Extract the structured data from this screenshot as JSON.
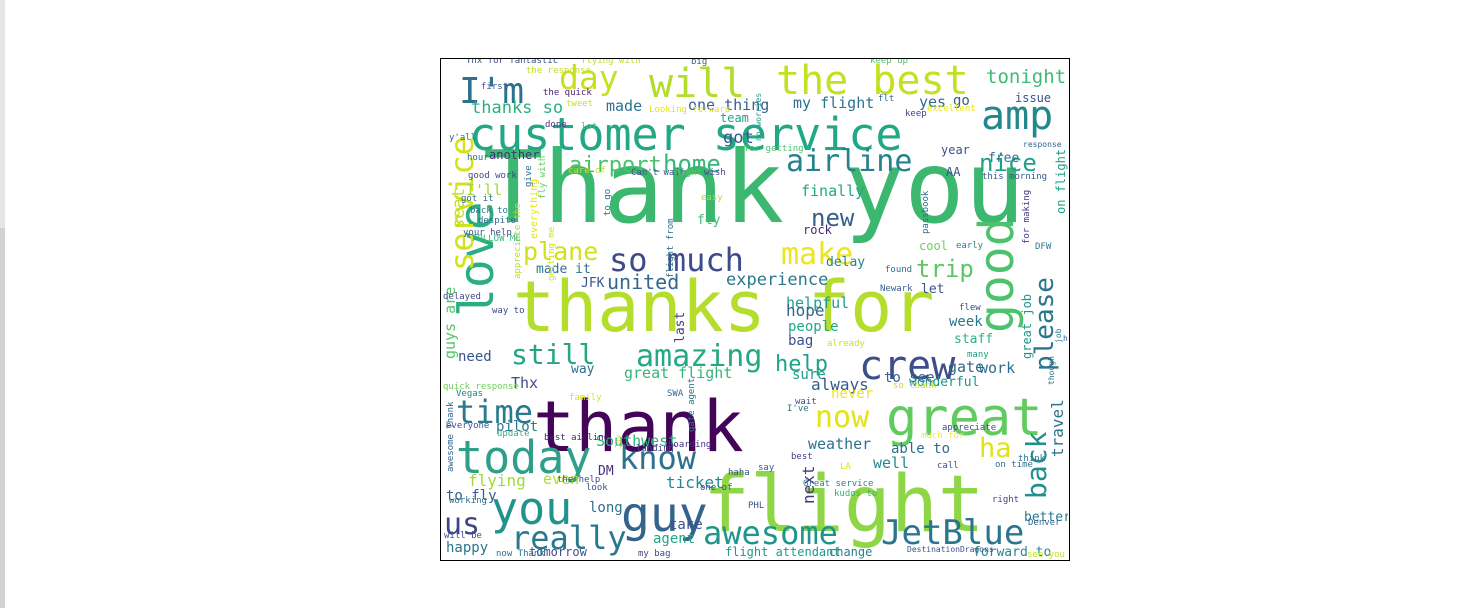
{
  "word_cloud": {
    "words": [
      {
        "text": "Thank you",
        "color": "#3bb76f"
      },
      {
        "text": "thanks for",
        "color": "#b5dd2b"
      },
      {
        "text": "thank",
        "color": "#44045a"
      },
      {
        "text": "flight",
        "color": "#8ed645"
      },
      {
        "text": "customer service",
        "color": "#22a884"
      },
      {
        "text": "the best",
        "color": "#c5e021"
      },
      {
        "text": "great",
        "color": "#62cb5f"
      },
      {
        "text": "love",
        "color": "#28ae80"
      },
      {
        "text": "today",
        "color": "#2f9f8a"
      },
      {
        "text": "good",
        "color": "#4cc26c"
      },
      {
        "text": "guy",
        "color": "#33648d"
      },
      {
        "text": "you",
        "color": "#20938c"
      },
      {
        "text": "awesome",
        "color": "#1f968b"
      },
      {
        "text": "JetBlue",
        "color": "#2b758e"
      },
      {
        "text": "crew",
        "color": "#3d4e8a"
      },
      {
        "text": "amp",
        "color": "#23888e"
      },
      {
        "text": "will",
        "color": "#b2dd2d"
      },
      {
        "text": "day",
        "color": "#c8e020"
      },
      {
        "text": "I'm",
        "color": "#2c728e"
      },
      {
        "text": "so much",
        "color": "#3e4a89"
      },
      {
        "text": "service",
        "color": "#d2e21b"
      },
      {
        "text": "airline",
        "color": "#26818e"
      },
      {
        "text": "time",
        "color": "#297a8e"
      },
      {
        "text": "know",
        "color": "#2d718e"
      },
      {
        "text": "still",
        "color": "#25a584"
      },
      {
        "text": "amazing",
        "color": "#24aa83"
      },
      {
        "text": "really",
        "color": "#29798e"
      },
      {
        "text": "us",
        "color": "#414487"
      },
      {
        "text": "now",
        "color": "#e2e418"
      },
      {
        "text": "back",
        "color": "#218f8d"
      },
      {
        "text": "please",
        "color": "#2a768e"
      },
      {
        "text": "make",
        "color": "#efe51c"
      },
      {
        "text": "plane",
        "color": "#d0e11c"
      },
      {
        "text": "new",
        "color": "#355f8d"
      },
      {
        "text": "help",
        "color": "#20a386"
      },
      {
        "text": "ha",
        "color": "#dfe318"
      },
      {
        "text": "nice",
        "color": "#1fa088"
      },
      {
        "text": "home",
        "color": "#35b779"
      },
      {
        "text": "airport",
        "color": "#4ac16d"
      },
      {
        "text": "trip",
        "color": "#5dc863"
      },
      {
        "text": "tonight",
        "color": "#3fbc73"
      },
      {
        "text": "thanks so",
        "color": "#2ab07f"
      },
      {
        "text": "made",
        "color": "#2c728e"
      },
      {
        "text": "one thing",
        "color": "#34618d"
      },
      {
        "text": "my flight",
        "color": "#2c738e"
      },
      {
        "text": "got",
        "color": "#3a548c"
      },
      {
        "text": "seat",
        "color": "#c0df25"
      },
      {
        "text": "I'll",
        "color": "#9fda3a"
      },
      {
        "text": "another",
        "color": "#46307e"
      },
      {
        "text": "yes",
        "color": "#2f6c8e"
      },
      {
        "text": "go",
        "color": "#375b8d"
      },
      {
        "text": "issue",
        "color": "#3b528b"
      },
      {
        "text": "free",
        "color": "#2d708e"
      },
      {
        "text": "year",
        "color": "#3b528b"
      },
      {
        "text": "AA",
        "color": "#3a548c"
      },
      {
        "text": "team",
        "color": "#20a486"
      },
      {
        "text": "finally",
        "color": "#22a785"
      },
      {
        "text": "delay",
        "color": "#25858e"
      },
      {
        "text": "rock",
        "color": "#482576"
      },
      {
        "text": "fly",
        "color": "#3fbc73"
      },
      {
        "text": "cool",
        "color": "#6ccd5a"
      },
      {
        "text": "on flight",
        "color": "#20a386"
      },
      {
        "text": "united",
        "color": "#31688e"
      },
      {
        "text": "experience",
        "color": "#2a788e"
      },
      {
        "text": "JFK",
        "color": "#39558c"
      },
      {
        "text": "made it",
        "color": "#2c728e"
      },
      {
        "text": "helpful",
        "color": "#1f9e89"
      },
      {
        "text": "hope",
        "color": "#33638d"
      },
      {
        "text": "people",
        "color": "#22a884"
      },
      {
        "text": "last",
        "color": "#433e85"
      },
      {
        "text": "let",
        "color": "#3b528b"
      },
      {
        "text": "week",
        "color": "#2a778e"
      },
      {
        "text": "staff",
        "color": "#2eb37c"
      },
      {
        "text": "great job",
        "color": "#1f978b"
      },
      {
        "text": "bag",
        "color": "#3c4f8a"
      },
      {
        "text": "Thx",
        "color": "#3e4c8a"
      },
      {
        "text": "way",
        "color": "#2e6f8e"
      },
      {
        "text": "sure",
        "color": "#1e9b8a"
      },
      {
        "text": "great flight",
        "color": "#34b679"
      },
      {
        "text": "always",
        "color": "#365c8d"
      },
      {
        "text": "to see",
        "color": "#33638d"
      },
      {
        "text": "wonderful",
        "color": "#21918c"
      },
      {
        "text": "gate",
        "color": "#31688e"
      },
      {
        "text": "work",
        "color": "#2e6e8e"
      },
      {
        "text": "need",
        "color": "#3a548c"
      },
      {
        "text": "pilot",
        "color": "#2a788e"
      },
      {
        "text": "weather",
        "color": "#2d718e"
      },
      {
        "text": "able to",
        "color": "#2e6d8e"
      },
      {
        "text": "Southwest",
        "color": "#2eb37c"
      },
      {
        "text": "well",
        "color": "#23888e"
      },
      {
        "text": "ticket",
        "color": "#23898e"
      },
      {
        "text": "flying",
        "color": "#a0da39"
      },
      {
        "text": "even",
        "color": "#b0dd2f"
      },
      {
        "text": "DM",
        "color": "#46307e"
      },
      {
        "text": "next",
        "color": "#453581"
      },
      {
        "text": "travel",
        "color": "#2b748e"
      },
      {
        "text": "to fly",
        "color": "#365d8d"
      },
      {
        "text": "long",
        "color": "#2e6f8e"
      },
      {
        "text": "agent",
        "color": "#20a386"
      },
      {
        "text": "take",
        "color": "#3a548c"
      },
      {
        "text": "happy",
        "color": "#2a778e"
      },
      {
        "text": "tomorrow",
        "color": "#3c508b"
      },
      {
        "text": "flight attendant",
        "color": "#1f9a8a"
      },
      {
        "text": "change",
        "color": "#27808e"
      },
      {
        "text": "forward to",
        "color": "#23898e"
      },
      {
        "text": "better",
        "color": "#2a778e"
      },
      {
        "text": "guys are",
        "color": "#56c667"
      },
      {
        "text": "never",
        "color": "#f1e51d"
      },
      {
        "text": "Thx for fantastic",
        "color": "#3c4f8a"
      },
      {
        "text": "flying with",
        "color": "#bddf26"
      },
      {
        "text": "big",
        "color": "#31668e"
      },
      {
        "text": "keep up",
        "color": "#52c569"
      },
      {
        "text": "the response",
        "color": "#c2df23"
      },
      {
        "text": "first",
        "color": "#3b528b"
      },
      {
        "text": "the quick",
        "color": "#482173"
      },
      {
        "text": "tweet",
        "color": "#cae11f"
      },
      {
        "text": "Looking forward",
        "color": "#e5e419"
      },
      {
        "text": "flt",
        "color": "#33638d"
      },
      {
        "text": "keep",
        "color": "#3e4989"
      },
      {
        "text": "excellent",
        "color": "#e7e419"
      },
      {
        "text": "lot",
        "color": "#4ac16d"
      },
      {
        "text": "y'all",
        "color": "#31688e"
      },
      {
        "text": "hour",
        "color": "#2f6b8e"
      },
      {
        "text": "done",
        "color": "#453882"
      },
      {
        "text": "response",
        "color": "#32658e"
      },
      {
        "text": "good work",
        "color": "#3f4788"
      },
      {
        "text": "Can't wait",
        "color": "#3b528b"
      },
      {
        "text": "night",
        "color": "#58c765"
      },
      {
        "text": "wish",
        "color": "#3e4a89"
      },
      {
        "text": "care of",
        "color": "#c2df23"
      },
      {
        "text": "this morning",
        "color": "#38588c"
      },
      {
        "text": "for getting",
        "color": "#48c16e"
      },
      {
        "text": "no worries",
        "color": "#1f988b"
      },
      {
        "text": "got it",
        "color": "#2e6e8e"
      },
      {
        "text": "back to",
        "color": "#2a768e"
      },
      {
        "text": "despite",
        "color": "#2e6f8e"
      },
      {
        "text": "your help",
        "color": "#3b528b"
      },
      {
        "text": "FOLLOW ME",
        "color": "#3bbb75"
      },
      {
        "text": "fly with",
        "color": "#62cb5f"
      },
      {
        "text": "everything",
        "color": "#e1e418"
      },
      {
        "text": "give",
        "color": "#2d708e"
      },
      {
        "text": "to go",
        "color": "#2e6d8e"
      },
      {
        "text": "easy",
        "color": "#b5de2b"
      },
      {
        "text": "passbook",
        "color": "#2f6c8e"
      },
      {
        "text": "early",
        "color": "#27808e"
      },
      {
        "text": "for making",
        "color": "#463480"
      },
      {
        "text": "DFW",
        "color": "#2a788e"
      },
      {
        "text": "found",
        "color": "#2c718e"
      },
      {
        "text": "Newark",
        "color": "#34608d"
      },
      {
        "text": "flew",
        "color": "#3e4a89"
      },
      {
        "text": "many",
        "color": "#1fa088"
      },
      {
        "text": "job",
        "color": "#2b758e"
      },
      {
        "text": "hi",
        "color": "#31668e"
      },
      {
        "text": "delayed",
        "color": "#3e4c8a"
      },
      {
        "text": "way to",
        "color": "#3f4889"
      },
      {
        "text": "appreciate the",
        "color": "#b8de29"
      },
      {
        "text": "getting me",
        "color": "#d8e219"
      },
      {
        "text": "flight from",
        "color": "#2c728e"
      },
      {
        "text": "quick response",
        "color": "#6ece58"
      },
      {
        "text": "SWA",
        "color": "#31688e"
      },
      {
        "text": "Vegas",
        "color": "#26828e"
      },
      {
        "text": "family",
        "color": "#d8e219"
      },
      {
        "text": "wait",
        "color": "#3b528b"
      },
      {
        "text": "I've",
        "color": "#2c728e"
      },
      {
        "text": "already",
        "color": "#cfe11c"
      },
      {
        "text": "so thank",
        "color": "#c5e021"
      },
      {
        "text": "though",
        "color": "#2d708e"
      },
      {
        "text": "everyone",
        "color": "#3a548c"
      },
      {
        "text": "awesome Thank",
        "color": "#33638d"
      },
      {
        "text": "update",
        "color": "#2eb37c"
      },
      {
        "text": "best airline",
        "color": "#481f70"
      },
      {
        "text": "landing",
        "color": "#3e4c8a"
      },
      {
        "text": "boarding",
        "color": "#46307e"
      },
      {
        "text": "gate agent",
        "color": "#2d718e"
      },
      {
        "text": "much for",
        "color": "#fde725"
      },
      {
        "text": "appreciate",
        "color": "#3d4e8a"
      },
      {
        "text": "call",
        "color": "#3b528b"
      },
      {
        "text": "on time",
        "color": "#2c728e"
      },
      {
        "text": "think",
        "color": "#2c728e"
      },
      {
        "text": "Joy",
        "color": "#c0df25"
      },
      {
        "text": "best",
        "color": "#433e85"
      },
      {
        "text": "LA",
        "color": "#e2e418"
      },
      {
        "text": "Great service",
        "color": "#26828e"
      },
      {
        "text": "say",
        "color": "#34608d"
      },
      {
        "text": "haha",
        "color": "#3b528b"
      },
      {
        "text": "kudos to",
        "color": "#2fb47c"
      },
      {
        "text": "right",
        "color": "#3f4788"
      },
      {
        "text": "one of",
        "color": "#3e4a89"
      },
      {
        "text": "PHL",
        "color": "#3b528b"
      },
      {
        "text": "working",
        "color": "#2e6e8e"
      },
      {
        "text": "look",
        "color": "#3e4c8a"
      },
      {
        "text": "the help",
        "color": "#3e4c8a"
      },
      {
        "text": "Denver",
        "color": "#31688e"
      },
      {
        "text": "will be",
        "color": "#3e4c8a"
      },
      {
        "text": "now Thank",
        "color": "#2e6f8e"
      },
      {
        "text": "my bag",
        "color": "#3e4a89"
      },
      {
        "text": "DestinationDragons",
        "color": "#3b528b"
      },
      {
        "text": "see you",
        "color": "#c5e021"
      },
      {
        "text": "the gate",
        "color": "#26828e"
      }
    ]
  }
}
